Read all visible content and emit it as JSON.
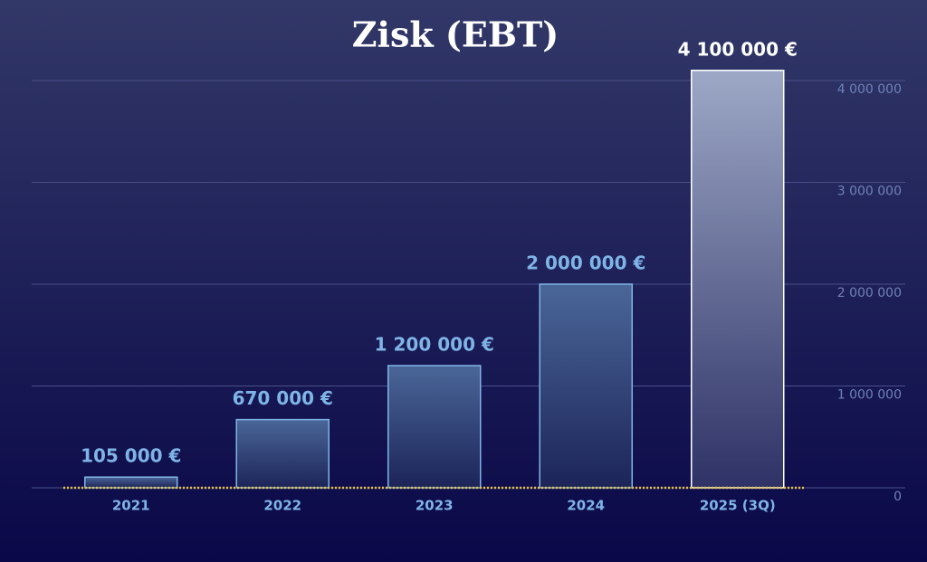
{
  "chart_data": {
    "type": "bar",
    "title": "Zisk (EBT)",
    "categories": [
      "2021",
      "2022",
      "2023",
      "2024",
      "2025 (3Q)"
    ],
    "values": [
      105000,
      670000,
      1200000,
      2000000,
      4100000
    ],
    "value_labels": [
      "105 000 €",
      "670 000 €",
      "1 200 000 €",
      "2 000 000 €",
      "4 100 000 €"
    ],
    "colors": [
      "#7fb4e6",
      "#7fb4e6",
      "#7fb4e6",
      "#7fb4e6",
      "#ffffff"
    ],
    "ylim": [
      0,
      4200000
    ],
    "yticks": [
      0,
      {
        "value": 1000000,
        "label": "1 000 000"
      },
      {
        "value": 2000000,
        "label": "2 000 000"
      },
      {
        "value": 3000000,
        "label": "3 000 000"
      },
      {
        "value": 4000000,
        "label": "4 000 000"
      }
    ],
    "grid": true,
    "baseline_color": "#e8c040"
  }
}
